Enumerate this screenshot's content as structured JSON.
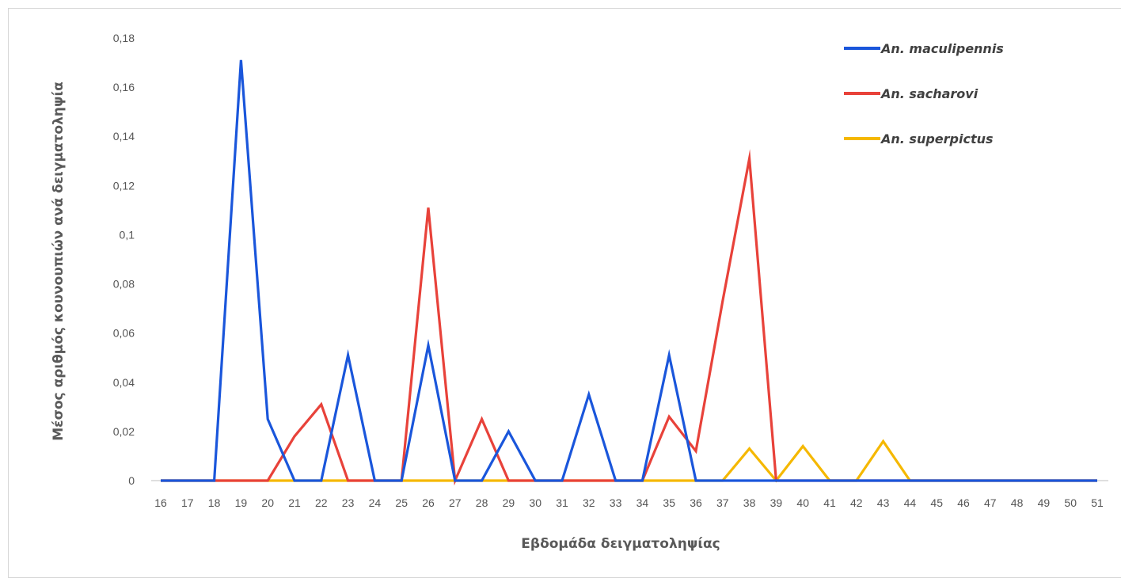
{
  "chart_data": {
    "type": "line",
    "title": "",
    "xlabel": "Εβδομάδα δειγματοληψίας",
    "ylabel": "Μέσος αριθμός κουνουπιών ανά δειγματοληψία",
    "categories": [
      "16",
      "17",
      "18",
      "19",
      "20",
      "21",
      "22",
      "23",
      "24",
      "25",
      "26",
      "27",
      "28",
      "29",
      "30",
      "31",
      "32",
      "33",
      "34",
      "35",
      "36",
      "37",
      "38",
      "39",
      "40",
      "41",
      "42",
      "43",
      "44",
      "45",
      "46",
      "47",
      "48",
      "49",
      "50",
      "51"
    ],
    "y_ticks": [
      "0",
      "0,02",
      "0,04",
      "0,06",
      "0,08",
      "0,1",
      "0,12",
      "0,14",
      "0,16",
      "0,18"
    ],
    "ylim": [
      0,
      0.18
    ],
    "grid": false,
    "legend_position": "top-right",
    "series": [
      {
        "name": "An. maculipennis",
        "color": "#1a56db",
        "values": [
          0,
          0,
          0,
          0.171,
          0.025,
          0,
          0,
          0.051,
          0,
          0,
          0.055,
          0,
          0,
          0.02,
          0,
          0,
          0.035,
          0,
          0,
          0.051,
          0,
          0,
          0,
          0,
          0,
          0,
          0,
          0,
          0,
          0,
          0,
          0,
          0,
          0,
          0,
          0
        ]
      },
      {
        "name": "An. sacharovi",
        "color": "#e8423a",
        "values": [
          0,
          0,
          0,
          0,
          0,
          0.018,
          0.031,
          0,
          0,
          0,
          0.111,
          0,
          0.025,
          0,
          0,
          0,
          0,
          0,
          0,
          0.026,
          0.012,
          0.073,
          0.131,
          0,
          0,
          0,
          0,
          0,
          0,
          0,
          0,
          0,
          0,
          0,
          0,
          0
        ]
      },
      {
        "name": "An. superpictus",
        "color": "#f5b800",
        "values": [
          0,
          0,
          0,
          0,
          0,
          0,
          0,
          0,
          0,
          0,
          0,
          0,
          0,
          0,
          0,
          0,
          0,
          0,
          0,
          0,
          0,
          0,
          0.013,
          0,
          0.014,
          0,
          0,
          0.016,
          0,
          0,
          0,
          0,
          0,
          0,
          0,
          0
        ]
      }
    ]
  }
}
